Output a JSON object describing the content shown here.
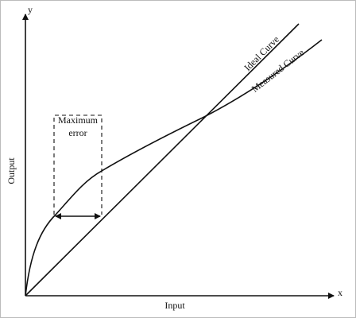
{
  "axes": {
    "y_label": "y",
    "x_label": "x",
    "y_title": "Output",
    "x_title": "Input"
  },
  "annotation": {
    "line1": "Maximum",
    "line2": "error"
  },
  "curves": {
    "ideal": "Ideal Curve",
    "measured": "Measured Curve"
  }
}
